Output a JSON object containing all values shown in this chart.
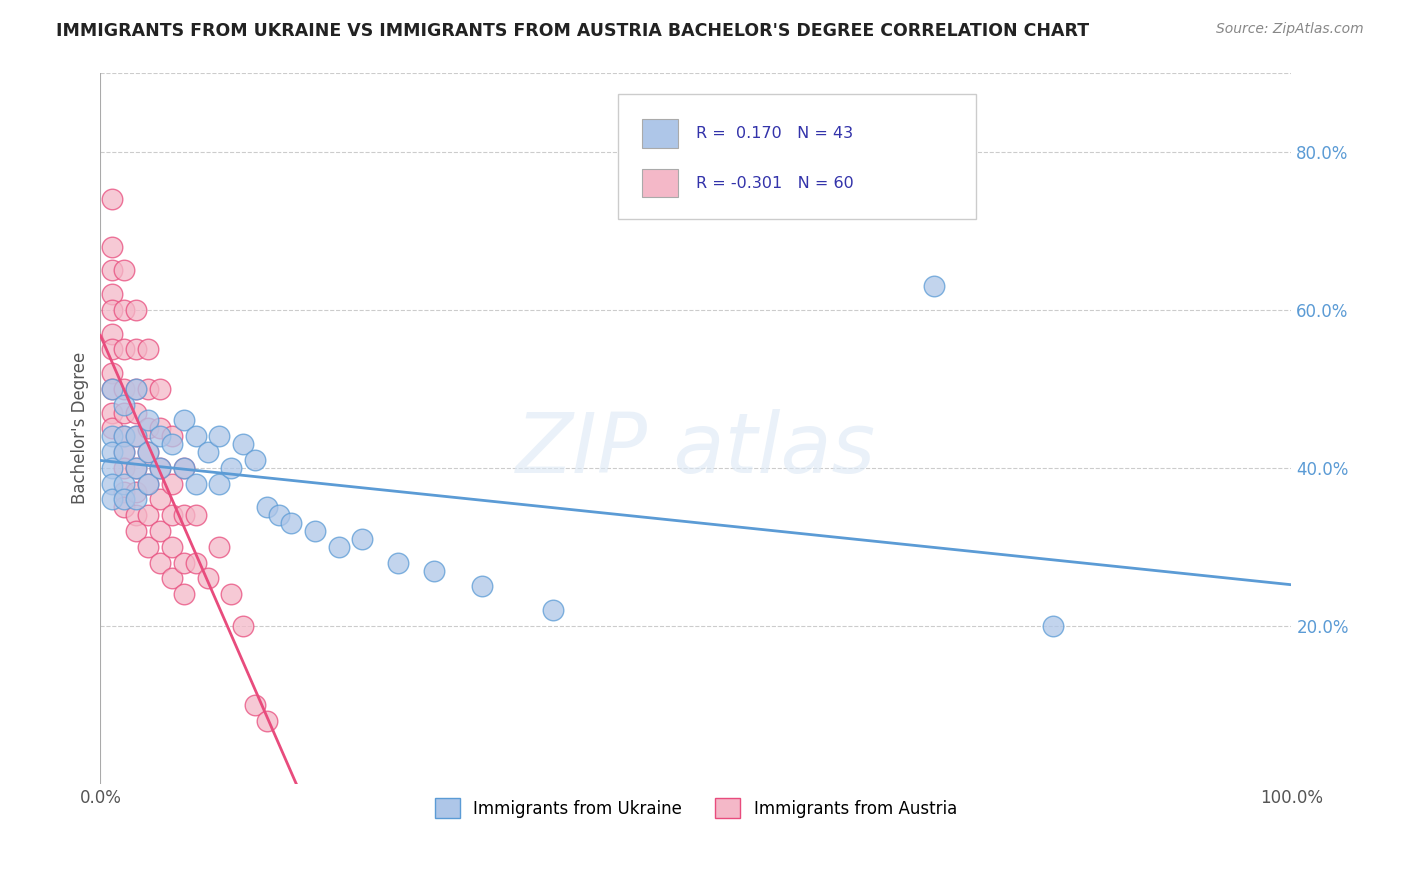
{
  "title": "IMMIGRANTS FROM UKRAINE VS IMMIGRANTS FROM AUSTRIA BACHELOR'S DEGREE CORRELATION CHART",
  "source": "Source: ZipAtlas.com",
  "ylabel": "Bachelor's Degree",
  "legend_entries": [
    {
      "label": "Immigrants from Ukraine",
      "R": 0.17,
      "N": 43
    },
    {
      "label": "Immigrants from Austria",
      "R": -0.301,
      "N": 60
    }
  ],
  "ukraine_scatter": [
    [
      0.01,
      0.5
    ],
    [
      0.01,
      0.44
    ],
    [
      0.01,
      0.42
    ],
    [
      0.01,
      0.4
    ],
    [
      0.01,
      0.38
    ],
    [
      0.01,
      0.36
    ],
    [
      0.02,
      0.48
    ],
    [
      0.02,
      0.44
    ],
    [
      0.02,
      0.42
    ],
    [
      0.02,
      0.38
    ],
    [
      0.02,
      0.36
    ],
    [
      0.03,
      0.5
    ],
    [
      0.03,
      0.44
    ],
    [
      0.03,
      0.4
    ],
    [
      0.03,
      0.36
    ],
    [
      0.04,
      0.46
    ],
    [
      0.04,
      0.42
    ],
    [
      0.04,
      0.38
    ],
    [
      0.05,
      0.44
    ],
    [
      0.05,
      0.4
    ],
    [
      0.06,
      0.43
    ],
    [
      0.07,
      0.46
    ],
    [
      0.07,
      0.4
    ],
    [
      0.08,
      0.44
    ],
    [
      0.08,
      0.38
    ],
    [
      0.09,
      0.42
    ],
    [
      0.1,
      0.44
    ],
    [
      0.1,
      0.38
    ],
    [
      0.11,
      0.4
    ],
    [
      0.12,
      0.43
    ],
    [
      0.13,
      0.41
    ],
    [
      0.14,
      0.35
    ],
    [
      0.15,
      0.34
    ],
    [
      0.16,
      0.33
    ],
    [
      0.18,
      0.32
    ],
    [
      0.2,
      0.3
    ],
    [
      0.22,
      0.31
    ],
    [
      0.25,
      0.28
    ],
    [
      0.28,
      0.27
    ],
    [
      0.32,
      0.25
    ],
    [
      0.38,
      0.22
    ],
    [
      0.7,
      0.63
    ],
    [
      0.8,
      0.2
    ]
  ],
  "austria_scatter": [
    [
      0.01,
      0.74
    ],
    [
      0.01,
      0.68
    ],
    [
      0.01,
      0.65
    ],
    [
      0.01,
      0.62
    ],
    [
      0.01,
      0.6
    ],
    [
      0.01,
      0.57
    ],
    [
      0.01,
      0.55
    ],
    [
      0.01,
      0.52
    ],
    [
      0.01,
      0.5
    ],
    [
      0.01,
      0.47
    ],
    [
      0.01,
      0.45
    ],
    [
      0.02,
      0.65
    ],
    [
      0.02,
      0.6
    ],
    [
      0.02,
      0.55
    ],
    [
      0.02,
      0.5
    ],
    [
      0.02,
      0.47
    ],
    [
      0.02,
      0.44
    ],
    [
      0.02,
      0.42
    ],
    [
      0.02,
      0.4
    ],
    [
      0.02,
      0.37
    ],
    [
      0.02,
      0.35
    ],
    [
      0.03,
      0.6
    ],
    [
      0.03,
      0.55
    ],
    [
      0.03,
      0.5
    ],
    [
      0.03,
      0.47
    ],
    [
      0.03,
      0.44
    ],
    [
      0.03,
      0.4
    ],
    [
      0.03,
      0.37
    ],
    [
      0.03,
      0.34
    ],
    [
      0.03,
      0.32
    ],
    [
      0.04,
      0.55
    ],
    [
      0.04,
      0.5
    ],
    [
      0.04,
      0.45
    ],
    [
      0.04,
      0.42
    ],
    [
      0.04,
      0.38
    ],
    [
      0.04,
      0.34
    ],
    [
      0.04,
      0.3
    ],
    [
      0.05,
      0.5
    ],
    [
      0.05,
      0.45
    ],
    [
      0.05,
      0.4
    ],
    [
      0.05,
      0.36
    ],
    [
      0.05,
      0.32
    ],
    [
      0.05,
      0.28
    ],
    [
      0.06,
      0.44
    ],
    [
      0.06,
      0.38
    ],
    [
      0.06,
      0.34
    ],
    [
      0.06,
      0.3
    ],
    [
      0.06,
      0.26
    ],
    [
      0.07,
      0.4
    ],
    [
      0.07,
      0.34
    ],
    [
      0.07,
      0.28
    ],
    [
      0.07,
      0.24
    ],
    [
      0.08,
      0.34
    ],
    [
      0.08,
      0.28
    ],
    [
      0.09,
      0.26
    ],
    [
      0.1,
      0.3
    ],
    [
      0.11,
      0.24
    ],
    [
      0.12,
      0.2
    ],
    [
      0.13,
      0.1
    ],
    [
      0.14,
      0.08
    ]
  ],
  "ukraine_line_color": "#5b9bd5",
  "austria_line_color": "#e84c7d",
  "ukraine_face": "#aec6e8",
  "austria_face": "#f4b8c8",
  "background_color": "#ffffff",
  "grid_color": "#cccccc",
  "xlim": [
    0.0,
    1.0
  ],
  "ylim": [
    0.0,
    0.9
  ],
  "y_ticks": [
    0.2,
    0.4,
    0.6,
    0.8
  ],
  "x_ticks": [
    0.0,
    1.0
  ]
}
